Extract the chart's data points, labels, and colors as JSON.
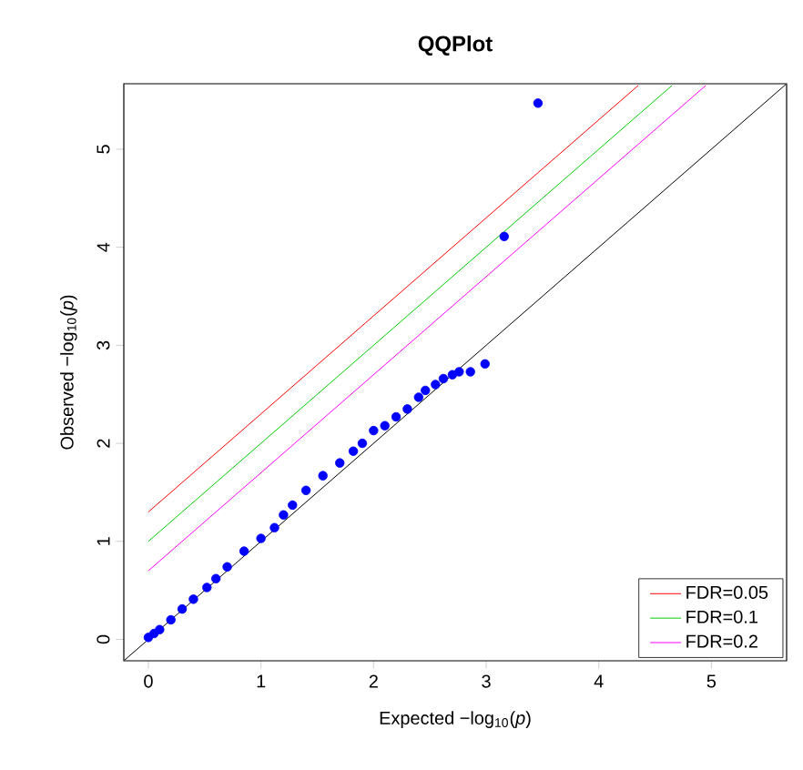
{
  "chart_data": {
    "type": "scatter",
    "title": "QQPlot",
    "xlabel": "Expected  −log$_{10}$(*p*)",
    "ylabel": "Observed  −log$_{10}$(*p*)",
    "xlim": [
      -0.218,
      5.668
    ],
    "ylim": [
      -0.218,
      5.668
    ],
    "xticks": [
      0,
      1,
      2,
      3,
      4,
      5
    ],
    "yticks": [
      0,
      1,
      2,
      3,
      4,
      5
    ],
    "grid": false,
    "legend": "bottom right",
    "series": [
      {
        "color": "#0000ff",
        "marker": "circle",
        "x": [
          0,
          0.05,
          0.1,
          0.2,
          0.3,
          0.4,
          0.52,
          0.6,
          0.7,
          0.85,
          1.0,
          1.12,
          1.2,
          1.28,
          1.4,
          1.55,
          1.7,
          1.82,
          1.9,
          2.0,
          2.1,
          2.2,
          2.3,
          2.4,
          2.46,
          2.55,
          2.62,
          2.7,
          2.76,
          2.86,
          2.99,
          3.16,
          3.46
        ],
        "values": [
          0.02,
          0.06,
          0.1,
          0.2,
          0.31,
          0.41,
          0.53,
          0.62,
          0.74,
          0.9,
          1.03,
          1.14,
          1.27,
          1.37,
          1.52,
          1.67,
          1.8,
          1.92,
          2.0,
          2.13,
          2.18,
          2.27,
          2.35,
          2.47,
          2.54,
          2.6,
          2.66,
          2.7,
          2.73,
          2.73,
          2.81,
          4.11,
          5.47
        ]
      },
      {
        "type": "line",
        "color": "#000000",
        "x": [
          -0.21,
          5.66
        ],
        "values": [
          -0.21,
          5.66
        ]
      },
      {
        "type": "line",
        "name": "FDR=0.05",
        "color": "#ff0000",
        "x": [
          0,
          4.35
        ],
        "values": [
          1.3,
          5.65
        ]
      },
      {
        "type": "line",
        "name": "FDR=0.1",
        "color": "#00cc00",
        "x": [
          0,
          4.65
        ],
        "values": [
          1.0,
          5.65
        ]
      },
      {
        "type": "line",
        "name": "FDR=0.2",
        "color": "#ff00ff",
        "x": [
          0,
          4.95
        ],
        "values": [
          0.7,
          5.65
        ]
      }
    ]
  }
}
